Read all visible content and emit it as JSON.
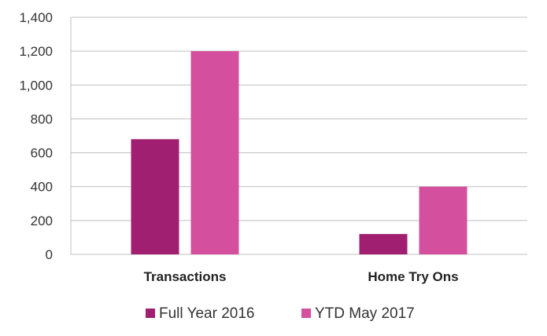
{
  "chart_data": {
    "type": "bar",
    "categories": [
      "Transactions",
      "Home Try Ons"
    ],
    "series": [
      {
        "name": "Full Year 2016",
        "values": [
          680,
          120
        ],
        "color": "#A01F70"
      },
      {
        "name": "YTD May 2017",
        "values": [
          1200,
          400
        ],
        "color": "#D4509E"
      }
    ],
    "yticks": [
      0,
      200,
      400,
      600,
      800,
      1000,
      1200,
      1400
    ],
    "ytick_labels": [
      "0",
      "200",
      "400",
      "600",
      "800",
      "1,000",
      "1,200",
      "1,400"
    ],
    "ylim": [
      0,
      1400
    ],
    "grid": true,
    "legend_position": "bottom",
    "title": "",
    "xlabel": "",
    "ylabel": ""
  }
}
